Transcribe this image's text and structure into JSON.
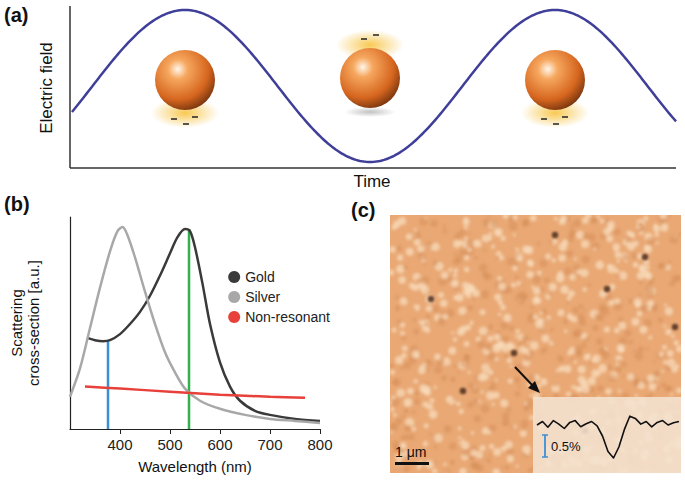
{
  "panels": {
    "a": {
      "letter": "(a)",
      "y_label": "Electric field",
      "x_label": "Time"
    },
    "b": {
      "letter": "(b)"
    },
    "c": {
      "letter": "(c)",
      "scale_bar": "1 μm",
      "inset_trace": [
        0,
        0.08,
        -0.05,
        0.1,
        0.02,
        -0.08,
        0.06,
        0.1,
        -0.04,
        0.03,
        0.08,
        -0.02,
        -0.25,
        -0.6,
        -0.75,
        -0.5,
        -0.1,
        0.2,
        0.15,
        0.02,
        0.08,
        -0.04,
        0.06,
        0.1,
        0.0,
        0.05,
        0.08
      ],
      "inset_scale": {
        "value": 0.5,
        "label": "0.5%"
      }
    }
  },
  "chart_data": {
    "type": "line",
    "x_label": "Wavelength (nm)",
    "y_label": "Scattering cross-section [a.u.]",
    "xlim": [
      300,
      800
    ],
    "xticks": [
      400,
      500,
      600,
      700,
      800
    ],
    "ylim": [
      0,
      1.05
    ],
    "tick_labels": "x",
    "grid": false,
    "legend": "right",
    "series": [
      {
        "name": "Gold",
        "color": "#3a3a3a",
        "x": [
          336,
          350,
          366,
          380,
          400,
          420,
          440,
          460,
          480,
          500,
          515,
          530,
          540,
          550,
          565,
          580,
          600,
          620,
          640,
          670,
          700,
          750,
          800
        ],
        "values": [
          0.45,
          0.44,
          0.435,
          0.44,
          0.47,
          0.52,
          0.58,
          0.66,
          0.76,
          0.87,
          0.95,
          0.99,
          0.98,
          0.9,
          0.72,
          0.52,
          0.33,
          0.21,
          0.14,
          0.09,
          0.07,
          0.05,
          0.04
        ]
      },
      {
        "name": "Silver",
        "color": "#a8a8a8",
        "x": [
          300,
          320,
          340,
          360,
          380,
          395,
          405,
          415,
          430,
          450,
          470,
          490,
          510,
          530,
          560,
          600,
          650,
          700,
          750,
          800
        ],
        "values": [
          0.16,
          0.3,
          0.5,
          0.7,
          0.88,
          0.98,
          1.0,
          0.96,
          0.85,
          0.68,
          0.52,
          0.38,
          0.28,
          0.2,
          0.14,
          0.1,
          0.07,
          0.05,
          0.04,
          0.03
        ]
      },
      {
        "name": "Non-resonant",
        "color": "#e8403a",
        "x": [
          330,
          400,
          500,
          600,
          700,
          770
        ],
        "values": [
          0.21,
          0.2,
          0.185,
          0.17,
          0.16,
          0.155
        ]
      }
    ],
    "vlines": [
      {
        "x": 376,
        "top": 0.435,
        "color": "#3b8fd6"
      },
      {
        "x": 538,
        "top": 0.99,
        "color": "#2fb14c"
      }
    ]
  }
}
